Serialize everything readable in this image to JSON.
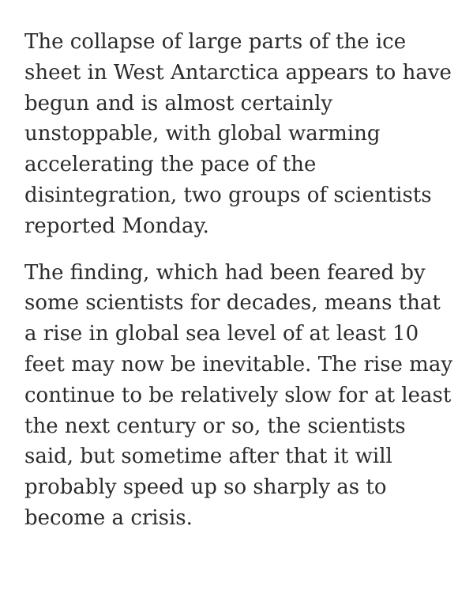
{
  "article": {
    "paragraphs": [
      {
        "lines": [
          "The collapse of large parts of the ice",
          "sheet in West Antarctica appears to have",
          "begun and is almost certainly",
          "unstoppable, with global warming",
          "accelerating the pace of the",
          "disintegration, two groups of scientists",
          "reported Monday."
        ]
      },
      {
        "lines": [
          "The finding, which had been feared by",
          "some scientists for decades, means that",
          "a rise in global sea level of at least 10",
          "feet may now be inevitable. The rise may",
          "continue to be relatively slow for at least",
          "the next century or so, the scientists",
          "said, but sometime after that it will",
          "probably speed up so sharply as to",
          "become a crisis."
        ]
      }
    ]
  }
}
